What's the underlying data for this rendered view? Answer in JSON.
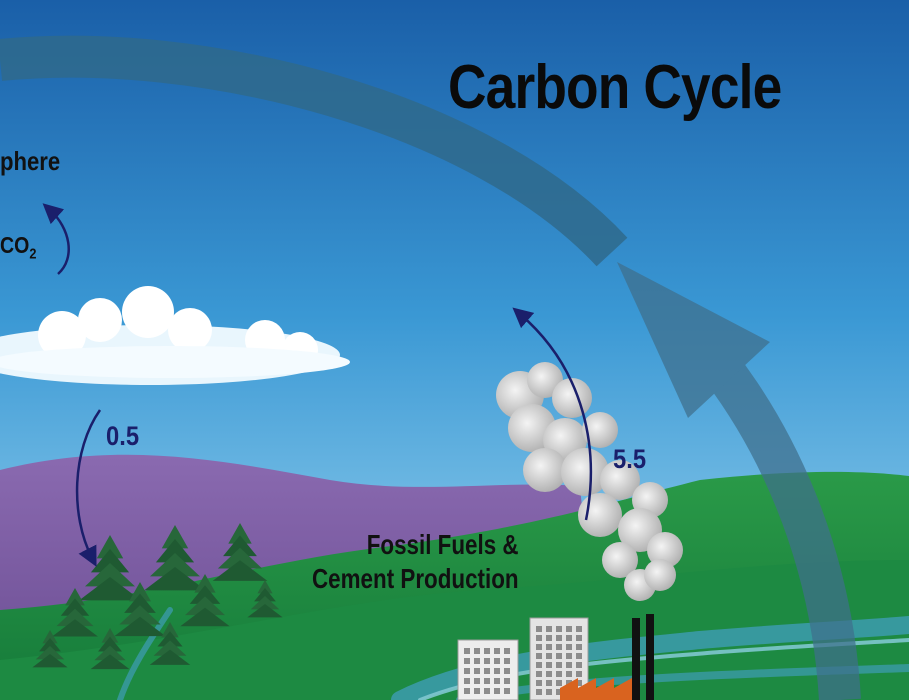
{
  "title": "Carbon Cycle",
  "labels": {
    "atmosphere_partial": "phere",
    "co2_prefix": "CO",
    "co2_sub": "2",
    "flux_vegetation": "0.5",
    "flux_fossil": "5.5",
    "fossil_line1": "Fossil Fuels &",
    "fossil_line2": "Cement Production"
  },
  "colors": {
    "sky_top": "#1a5fa8",
    "sky_bottom": "#9fd6f2",
    "big_arrow": "#2f6a8c",
    "hills_purple": "#7a5aa0",
    "hills_green": "#2e9a4a",
    "small_arrow": "#1a1f6b",
    "trees": "#1f5a32"
  },
  "icons": [
    "big-cycle-arrow",
    "cloud",
    "smoke-plume",
    "factory",
    "office-building",
    "pine-tree",
    "river"
  ]
}
